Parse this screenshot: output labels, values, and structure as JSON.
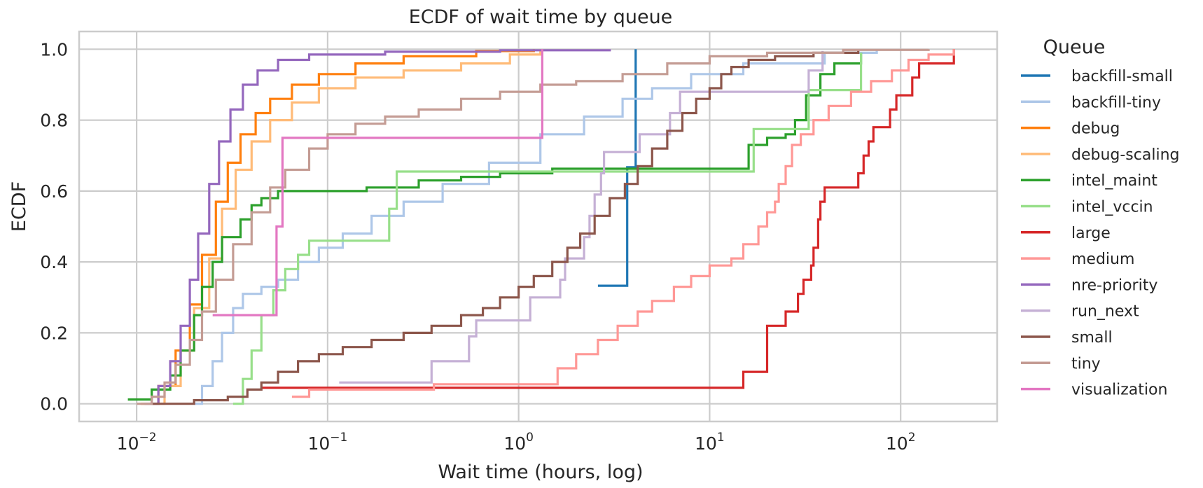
{
  "chart_data": {
    "type": "line",
    "title": "ECDF of wait time by queue",
    "xlabel": "Wait time (hours, log)",
    "ylabel": "ECDF",
    "xscale": "log",
    "xlim": [
      0.005,
      320
    ],
    "ylim": [
      -0.05,
      1.05
    ],
    "x_ticks": [
      {
        "value": 0.01,
        "base": "10",
        "exp": "−2"
      },
      {
        "value": 0.1,
        "base": "10",
        "exp": "−1"
      },
      {
        "value": 1,
        "base": "10",
        "exp": "0"
      },
      {
        "value": 10,
        "base": "10",
        "exp": "1"
      },
      {
        "value": 100,
        "base": "10",
        "exp": "2"
      }
    ],
    "y_ticks": [
      "0.0",
      "0.2",
      "0.4",
      "0.6",
      "0.8",
      "1.0"
    ],
    "grid": true,
    "legend_title": "Queue",
    "legend_position": "outside-right",
    "series": [
      {
        "name": "backfill-small",
        "color": "#1f77b4",
        "points": [
          [
            2.6,
            0.333
          ],
          [
            3.7,
            0.333
          ],
          [
            3.7,
            0.667
          ],
          [
            4.1,
            0.667
          ],
          [
            4.1,
            1.0
          ]
        ]
      },
      {
        "name": "backfill-tiny",
        "color": "#aec7e8",
        "points": [
          [
            0.02,
            0.0
          ],
          [
            0.022,
            0.05
          ],
          [
            0.025,
            0.12
          ],
          [
            0.028,
            0.2
          ],
          [
            0.032,
            0.27
          ],
          [
            0.036,
            0.31
          ],
          [
            0.045,
            0.33
          ],
          [
            0.055,
            0.35
          ],
          [
            0.07,
            0.4
          ],
          [
            0.09,
            0.44
          ],
          [
            0.12,
            0.48
          ],
          [
            0.17,
            0.53
          ],
          [
            0.25,
            0.57
          ],
          [
            0.4,
            0.62
          ],
          [
            0.7,
            0.68
          ],
          [
            1.3,
            0.76
          ],
          [
            2.2,
            0.81
          ],
          [
            3.5,
            0.86
          ],
          [
            5,
            0.89
          ],
          [
            8,
            0.93
          ],
          [
            15,
            0.96
          ],
          [
            40,
            0.99
          ],
          [
            75,
            1.0
          ]
        ]
      },
      {
        "name": "debug",
        "color": "#ff7f0e",
        "points": [
          [
            0.0105,
            0.0
          ],
          [
            0.013,
            0.05
          ],
          [
            0.016,
            0.15
          ],
          [
            0.019,
            0.28
          ],
          [
            0.022,
            0.42
          ],
          [
            0.026,
            0.57
          ],
          [
            0.03,
            0.68
          ],
          [
            0.035,
            0.76
          ],
          [
            0.042,
            0.82
          ],
          [
            0.05,
            0.86
          ],
          [
            0.065,
            0.9
          ],
          [
            0.09,
            0.93
          ],
          [
            0.14,
            0.96
          ],
          [
            0.25,
            0.98
          ],
          [
            0.6,
            0.995
          ],
          [
            1.2,
            1.0
          ]
        ]
      },
      {
        "name": "debug-scaling",
        "color": "#ffbb78",
        "points": [
          [
            0.011,
            0.0
          ],
          [
            0.014,
            0.05
          ],
          [
            0.017,
            0.15
          ],
          [
            0.02,
            0.27
          ],
          [
            0.024,
            0.41
          ],
          [
            0.028,
            0.55
          ],
          [
            0.033,
            0.66
          ],
          [
            0.04,
            0.74
          ],
          [
            0.05,
            0.8
          ],
          [
            0.065,
            0.85
          ],
          [
            0.09,
            0.89
          ],
          [
            0.14,
            0.92
          ],
          [
            0.25,
            0.94
          ],
          [
            0.5,
            0.96
          ],
          [
            0.9,
            0.985
          ],
          [
            1.3,
            1.0
          ]
        ]
      },
      {
        "name": "intel_maint",
        "color": "#2ca02c",
        "points": [
          [
            0.009,
            0.012
          ],
          [
            0.012,
            0.012
          ],
          [
            0.012,
            0.04
          ],
          [
            0.015,
            0.08
          ],
          [
            0.017,
            0.15
          ],
          [
            0.02,
            0.25
          ],
          [
            0.022,
            0.33
          ],
          [
            0.025,
            0.4
          ],
          [
            0.028,
            0.47
          ],
          [
            0.035,
            0.52
          ],
          [
            0.04,
            0.56
          ],
          [
            0.045,
            0.58
          ],
          [
            0.055,
            0.6
          ],
          [
            0.12,
            0.6
          ],
          [
            0.16,
            0.61
          ],
          [
            0.3,
            0.63
          ],
          [
            0.5,
            0.64
          ],
          [
            0.8,
            0.65
          ],
          [
            1.5,
            0.663
          ],
          [
            15,
            0.663
          ],
          [
            16,
            0.73
          ],
          [
            20,
            0.75
          ],
          [
            25,
            0.76
          ],
          [
            28,
            0.8
          ],
          [
            32,
            0.87
          ],
          [
            38,
            0.93
          ],
          [
            45,
            0.96
          ],
          [
            62,
            0.99
          ]
        ]
      },
      {
        "name": "intel_vccin",
        "color": "#98df8a",
        "points": [
          [
            0.032,
            0.0
          ],
          [
            0.036,
            0.07
          ],
          [
            0.04,
            0.15
          ],
          [
            0.045,
            0.25
          ],
          [
            0.052,
            0.32
          ],
          [
            0.06,
            0.38
          ],
          [
            0.07,
            0.42
          ],
          [
            0.08,
            0.46
          ],
          [
            0.2,
            0.46
          ],
          [
            0.21,
            0.55
          ],
          [
            0.23,
            0.655
          ],
          [
            16.5,
            0.655
          ],
          [
            17,
            0.775
          ],
          [
            32,
            0.775
          ],
          [
            33,
            0.885
          ],
          [
            60,
            0.885
          ],
          [
            62,
            0.99
          ]
        ]
      },
      {
        "name": "large",
        "color": "#d62728",
        "points": [
          [
            0.045,
            0.045
          ],
          [
            15,
            0.045
          ],
          [
            15,
            0.09
          ],
          [
            19,
            0.09
          ],
          [
            20,
            0.22
          ],
          [
            24,
            0.22
          ],
          [
            25,
            0.26
          ],
          [
            28,
            0.26
          ],
          [
            29,
            0.31
          ],
          [
            31,
            0.35
          ],
          [
            34,
            0.39
          ],
          [
            35,
            0.44
          ],
          [
            37,
            0.52
          ],
          [
            38,
            0.57
          ],
          [
            40,
            0.61
          ],
          [
            58,
            0.61
          ],
          [
            60,
            0.65
          ],
          [
            64,
            0.7
          ],
          [
            68,
            0.74
          ],
          [
            72,
            0.78
          ],
          [
            85,
            0.78
          ],
          [
            88,
            0.83
          ],
          [
            95,
            0.87
          ],
          [
            110,
            0.87
          ],
          [
            115,
            0.92
          ],
          [
            125,
            0.96
          ],
          [
            185,
            0.96
          ],
          [
            190,
            1.0
          ]
        ]
      },
      {
        "name": "medium",
        "color": "#ff9896",
        "points": [
          [
            0.065,
            0.02
          ],
          [
            0.08,
            0.02
          ],
          [
            0.08,
            0.04
          ],
          [
            0.36,
            0.04
          ],
          [
            0.36,
            0.055
          ],
          [
            1.5,
            0.055
          ],
          [
            1.6,
            0.1
          ],
          [
            2,
            0.14
          ],
          [
            2.6,
            0.18
          ],
          [
            3.3,
            0.22
          ],
          [
            4.2,
            0.26
          ],
          [
            5,
            0.29
          ],
          [
            6.5,
            0.33
          ],
          [
            8,
            0.36
          ],
          [
            10,
            0.39
          ],
          [
            13,
            0.41
          ],
          [
            15,
            0.45
          ],
          [
            18,
            0.5
          ],
          [
            20,
            0.54
          ],
          [
            22,
            0.57
          ],
          [
            23,
            0.62
          ],
          [
            25,
            0.67
          ],
          [
            27,
            0.73
          ],
          [
            30,
            0.76
          ],
          [
            35,
            0.8
          ],
          [
            42,
            0.84
          ],
          [
            55,
            0.88
          ],
          [
            70,
            0.91
          ],
          [
            90,
            0.94
          ],
          [
            110,
            0.97
          ],
          [
            140,
            0.985
          ],
          [
            190,
            1.0
          ]
        ]
      },
      {
        "name": "nre-priority",
        "color": "#9467bd",
        "points": [
          [
            0.011,
            0.0
          ],
          [
            0.013,
            0.05
          ],
          [
            0.015,
            0.12
          ],
          [
            0.017,
            0.22
          ],
          [
            0.019,
            0.35
          ],
          [
            0.021,
            0.48
          ],
          [
            0.024,
            0.62
          ],
          [
            0.027,
            0.74
          ],
          [
            0.031,
            0.83
          ],
          [
            0.036,
            0.9
          ],
          [
            0.043,
            0.94
          ],
          [
            0.055,
            0.97
          ],
          [
            0.08,
            0.985
          ],
          [
            0.2,
            0.993
          ],
          [
            0.8,
            0.997
          ],
          [
            3,
            1.0
          ]
        ]
      },
      {
        "name": "run_next",
        "color": "#c5b0d5",
        "points": [
          [
            0.115,
            0.06
          ],
          [
            0.35,
            0.06
          ],
          [
            0.35,
            0.12
          ],
          [
            0.55,
            0.12
          ],
          [
            0.55,
            0.19
          ],
          [
            0.6,
            0.235
          ],
          [
            1.1,
            0.235
          ],
          [
            1.15,
            0.3
          ],
          [
            1.6,
            0.3
          ],
          [
            1.65,
            0.35
          ],
          [
            1.75,
            0.41
          ],
          [
            2.0,
            0.41
          ],
          [
            2.2,
            0.47
          ],
          [
            2.35,
            0.53
          ],
          [
            2.5,
            0.59
          ],
          [
            2.7,
            0.65
          ],
          [
            2.8,
            0.71
          ],
          [
            4.2,
            0.71
          ],
          [
            4.3,
            0.76
          ],
          [
            6,
            0.76
          ],
          [
            6.2,
            0.82
          ],
          [
            7,
            0.88
          ],
          [
            31,
            0.88
          ],
          [
            33,
            0.94
          ],
          [
            39,
            0.995
          ]
        ]
      },
      {
        "name": "small",
        "color": "#8c564b",
        "points": [
          [
            0.012,
            0.0
          ],
          [
            0.02,
            0.01
          ],
          [
            0.03,
            0.02
          ],
          [
            0.038,
            0.04
          ],
          [
            0.045,
            0.06
          ],
          [
            0.055,
            0.09
          ],
          [
            0.07,
            0.12
          ],
          [
            0.09,
            0.14
          ],
          [
            0.12,
            0.16
          ],
          [
            0.17,
            0.18
          ],
          [
            0.25,
            0.2
          ],
          [
            0.35,
            0.22
          ],
          [
            0.5,
            0.25
          ],
          [
            0.65,
            0.27
          ],
          [
            0.8,
            0.3
          ],
          [
            1.0,
            0.33
          ],
          [
            1.2,
            0.36
          ],
          [
            1.5,
            0.4
          ],
          [
            1.8,
            0.44
          ],
          [
            2.1,
            0.48
          ],
          [
            2.5,
            0.53
          ],
          [
            3,
            0.58
          ],
          [
            3.6,
            0.62
          ],
          [
            4.2,
            0.67
          ],
          [
            5,
            0.72
          ],
          [
            6,
            0.77
          ],
          [
            7.2,
            0.82
          ],
          [
            8.5,
            0.86
          ],
          [
            10,
            0.89
          ],
          [
            11.5,
            0.93
          ],
          [
            13,
            0.95
          ],
          [
            16,
            0.97
          ],
          [
            22,
            0.98
          ],
          [
            35,
            0.99
          ],
          [
            60,
            1.0
          ]
        ]
      },
      {
        "name": "tiny",
        "color": "#c49c94",
        "points": [
          [
            0.01,
            0.0
          ],
          [
            0.012,
            0.02
          ],
          [
            0.014,
            0.06
          ],
          [
            0.016,
            0.11
          ],
          [
            0.019,
            0.18
          ],
          [
            0.022,
            0.26
          ],
          [
            0.026,
            0.35
          ],
          [
            0.032,
            0.45
          ],
          [
            0.04,
            0.54
          ],
          [
            0.05,
            0.61
          ],
          [
            0.06,
            0.66
          ],
          [
            0.08,
            0.72
          ],
          [
            0.1,
            0.76
          ],
          [
            0.14,
            0.79
          ],
          [
            0.2,
            0.81
          ],
          [
            0.3,
            0.83
          ],
          [
            0.5,
            0.86
          ],
          [
            0.8,
            0.88
          ],
          [
            1.3,
            0.9
          ],
          [
            2,
            0.91
          ],
          [
            3.5,
            0.93
          ],
          [
            6,
            0.96
          ],
          [
            10,
            0.98
          ],
          [
            20,
            0.99
          ],
          [
            50,
            0.998
          ],
          [
            140,
            1.0
          ]
        ]
      },
      {
        "name": "visualization",
        "color": "#e377c2",
        "points": [
          [
            0.025,
            0.25
          ],
          [
            0.054,
            0.25
          ],
          [
            0.054,
            0.5
          ],
          [
            0.058,
            0.5
          ],
          [
            0.058,
            0.75
          ],
          [
            1.33,
            0.75
          ],
          [
            1.33,
            1.0
          ]
        ]
      }
    ]
  }
}
